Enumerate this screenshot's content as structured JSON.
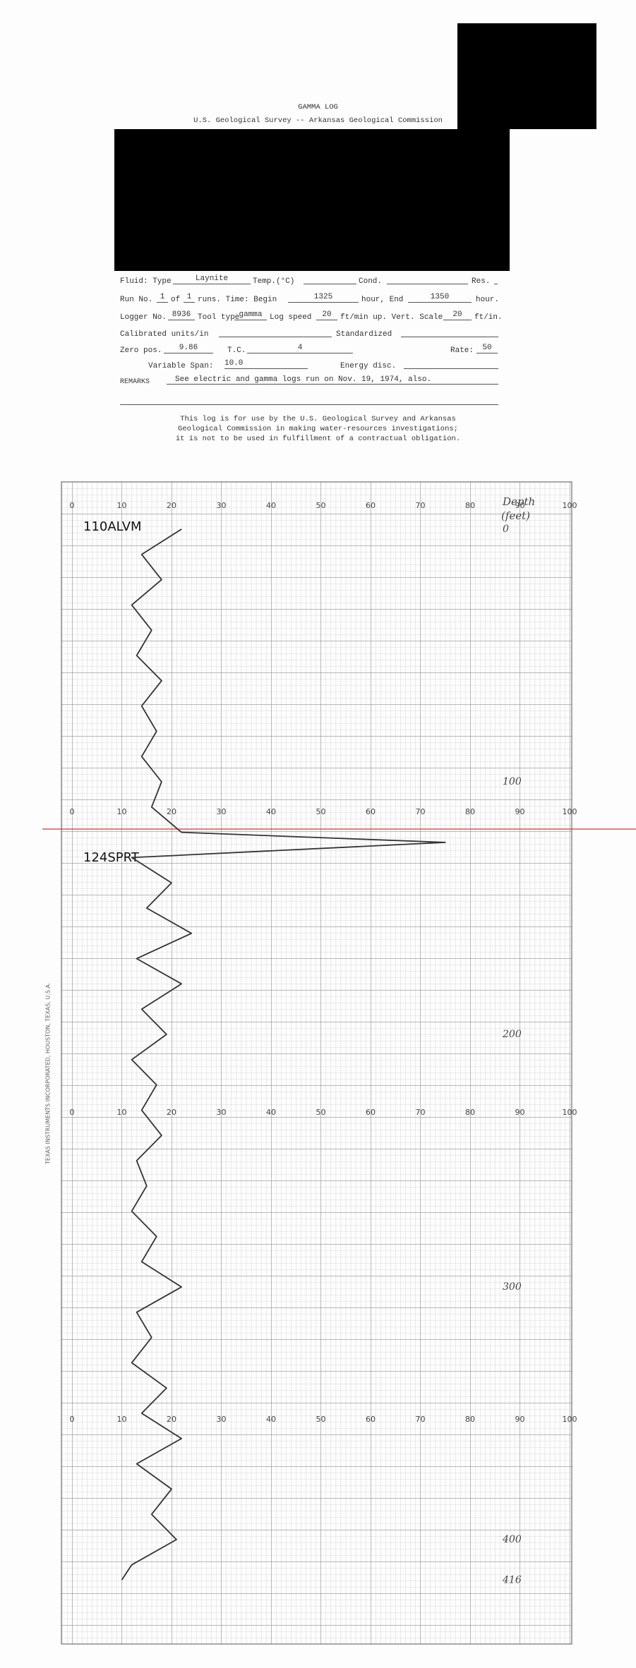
{
  "header": {
    "title": "GAMMA LOG",
    "agency": "U.S. Geological Survey -- Arkansas Geological Commission"
  },
  "form": {
    "fluid_label": "Fluid: Type",
    "fluid_type": "Laynite",
    "temp_label": "Temp.(°C)",
    "cond_label": "Cond.",
    "res_label": "Res.",
    "run_label": "Run No.",
    "run_no": "1",
    "of_label": "of",
    "runs": "1",
    "time_label": "runs.  Time:  Begin",
    "begin": "1325",
    "end_label": "hour, End",
    "end": "1350",
    "hour_label": "hour.",
    "logger_label": "Logger No.",
    "logger_no": "8936",
    "tool_label": "Tool type",
    "tool_type": "gamma",
    "speed_label": "Log speed",
    "speed": "20",
    "speed_unit": "ft/min up. Vert. Scale",
    "vert_scale": "20",
    "scale_unit": "ft/in.",
    "calibrated_label": "Calibrated units/in",
    "standardized_label": "Standardized",
    "zero_label": "Zero pos.",
    "zero_pos": "9.86",
    "tc_label": "T.C.",
    "tc": "4",
    "rate_label": "Rate:",
    "rate": "50",
    "span_label": "Variable Span:",
    "span": "10.0",
    "energy_label": "Energy disc.",
    "remarks_label": "REMARKS",
    "remarks": "See electric and gamma logs run on Nov. 19, 1974, also."
  },
  "notice": [
    "This log is for use by the U.S. Geological Survey and Arkansas",
    "Geological Commission in making water-resources investigations;",
    "it is not to be used in fulfillment of a contractual obligation."
  ],
  "log": {
    "scale_labels": [
      0,
      10,
      20,
      30,
      40,
      50,
      60,
      70,
      80,
      90,
      100
    ],
    "depth_heading": [
      "Depth",
      "(feet)"
    ],
    "depth_labels": [
      0,
      100,
      200,
      300,
      400,
      416
    ],
    "formations": [
      "110ALVM",
      "124SPRT"
    ],
    "paper_text": "TEXAS INSTRUMENTS INCORPORATED, HOUSTON, TEXAS, U.S.A.",
    "trace": {
      "depth": [
        0,
        10,
        20,
        30,
        40,
        50,
        60,
        70,
        80,
        90,
        100,
        110,
        120,
        124,
        130,
        140,
        150,
        160,
        170,
        180,
        190,
        200,
        210,
        220,
        230,
        240,
        250,
        260,
        270,
        280,
        290,
        300,
        310,
        320,
        330,
        340,
        350,
        360,
        370,
        380,
        390,
        400,
        410,
        416
      ],
      "gamma": [
        22,
        14,
        18,
        12,
        16,
        13,
        18,
        14,
        17,
        14,
        18,
        16,
        22,
        75,
        12,
        20,
        15,
        24,
        13,
        22,
        14,
        19,
        12,
        17,
        14,
        18,
        13,
        15,
        12,
        17,
        14,
        22,
        13,
        16,
        12,
        19,
        14,
        22,
        13,
        20,
        16,
        21,
        12,
        10
      ]
    }
  }
}
